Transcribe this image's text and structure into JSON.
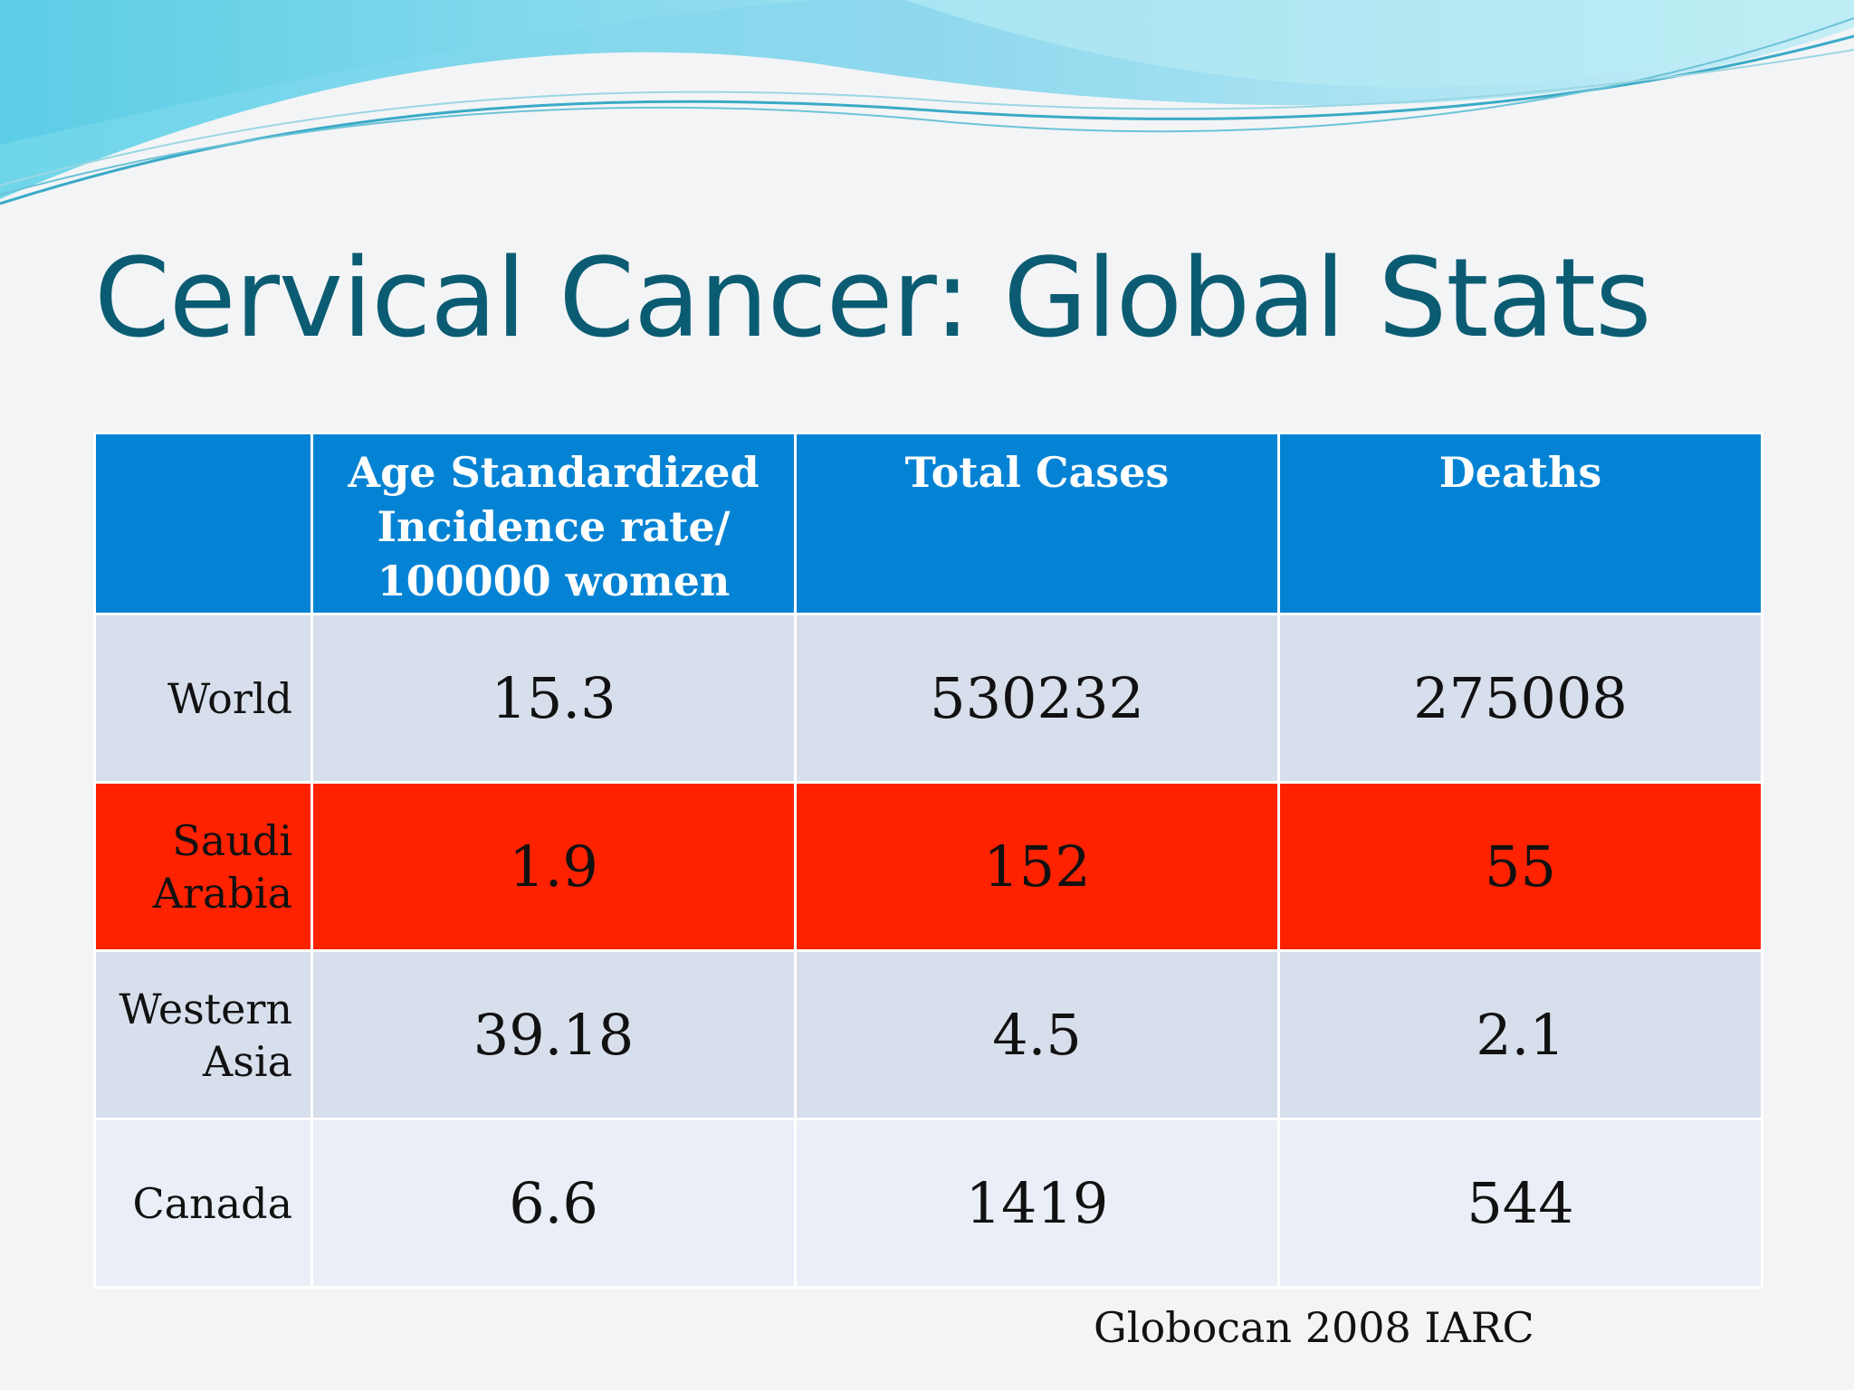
{
  "slide": {
    "title": "Cervical Cancer: Global Stats",
    "source": "Globocan 2008 IARC"
  },
  "table": {
    "header": {
      "corner": "",
      "rate_line1": "Age Standardized",
      "rate_line2": "Incidence rate/",
      "rate_line3": "100000 women",
      "cases": "Total Cases",
      "deaths": "Deaths"
    },
    "rows": [
      {
        "region_line1": "World",
        "region_line2": "",
        "rate": "15.3",
        "cases": "530232",
        "deaths": "275008"
      },
      {
        "region_line1": "Saudi",
        "region_line2": "Arabia",
        "rate": "1.9",
        "cases": "152",
        "deaths": "55"
      },
      {
        "region_line1": "Western",
        "region_line2": "Asia",
        "rate": "39.18",
        "cases": "4.5",
        "deaths": "2.1"
      },
      {
        "region_line1": "Canada",
        "region_line2": "",
        "rate": "6.6",
        "cases": "1419",
        "deaths": "544"
      }
    ]
  },
  "colors": {
    "title": "#0b5c72",
    "header_background": "#0483d4",
    "highlight_row": "#ff2200",
    "light_row": "#d7dfec",
    "pale_row": "#eaeef6"
  }
}
